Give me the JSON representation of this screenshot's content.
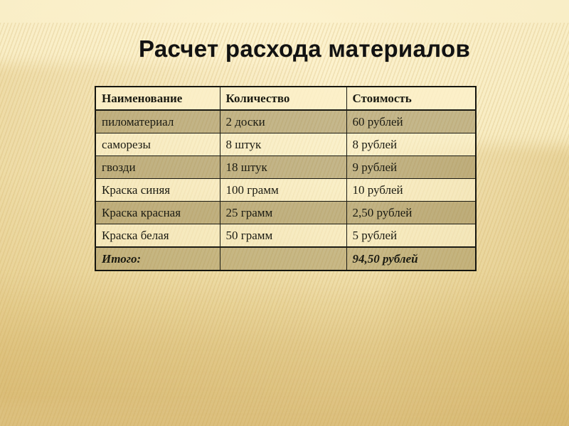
{
  "slide": {
    "title": "Расчет расхода материалов"
  },
  "table": {
    "headers": [
      "Наименование",
      "Количество",
      "Стоимость"
    ],
    "rows": [
      [
        "пиломатериал",
        "2 доски",
        "60 рублей"
      ],
      [
        "саморезы",
        "8 штук",
        "8 рублей"
      ],
      [
        "гвозди",
        "18 штук",
        "9 рублей"
      ],
      [
        "Краска синяя",
        "100 грамм",
        "10 рублей"
      ],
      [
        "Краска красная",
        "25 грамм",
        "2,50 рублей"
      ],
      [
        "Краска белая",
        "50 грамм",
        "5 рублей"
      ]
    ],
    "total": {
      "label": "Итого:",
      "quantity": "",
      "value": "94,50 рублей"
    }
  },
  "colors": {
    "slide_background": "#f9eec7",
    "stripe_tint": "#c59f4e",
    "shade_gold": "#caa24c",
    "row_dark": "#c7bb91",
    "row_light": "#f8eec5",
    "table_border": "#1b1b14",
    "text": "#1b1b12",
    "title_text": "#121212"
  }
}
